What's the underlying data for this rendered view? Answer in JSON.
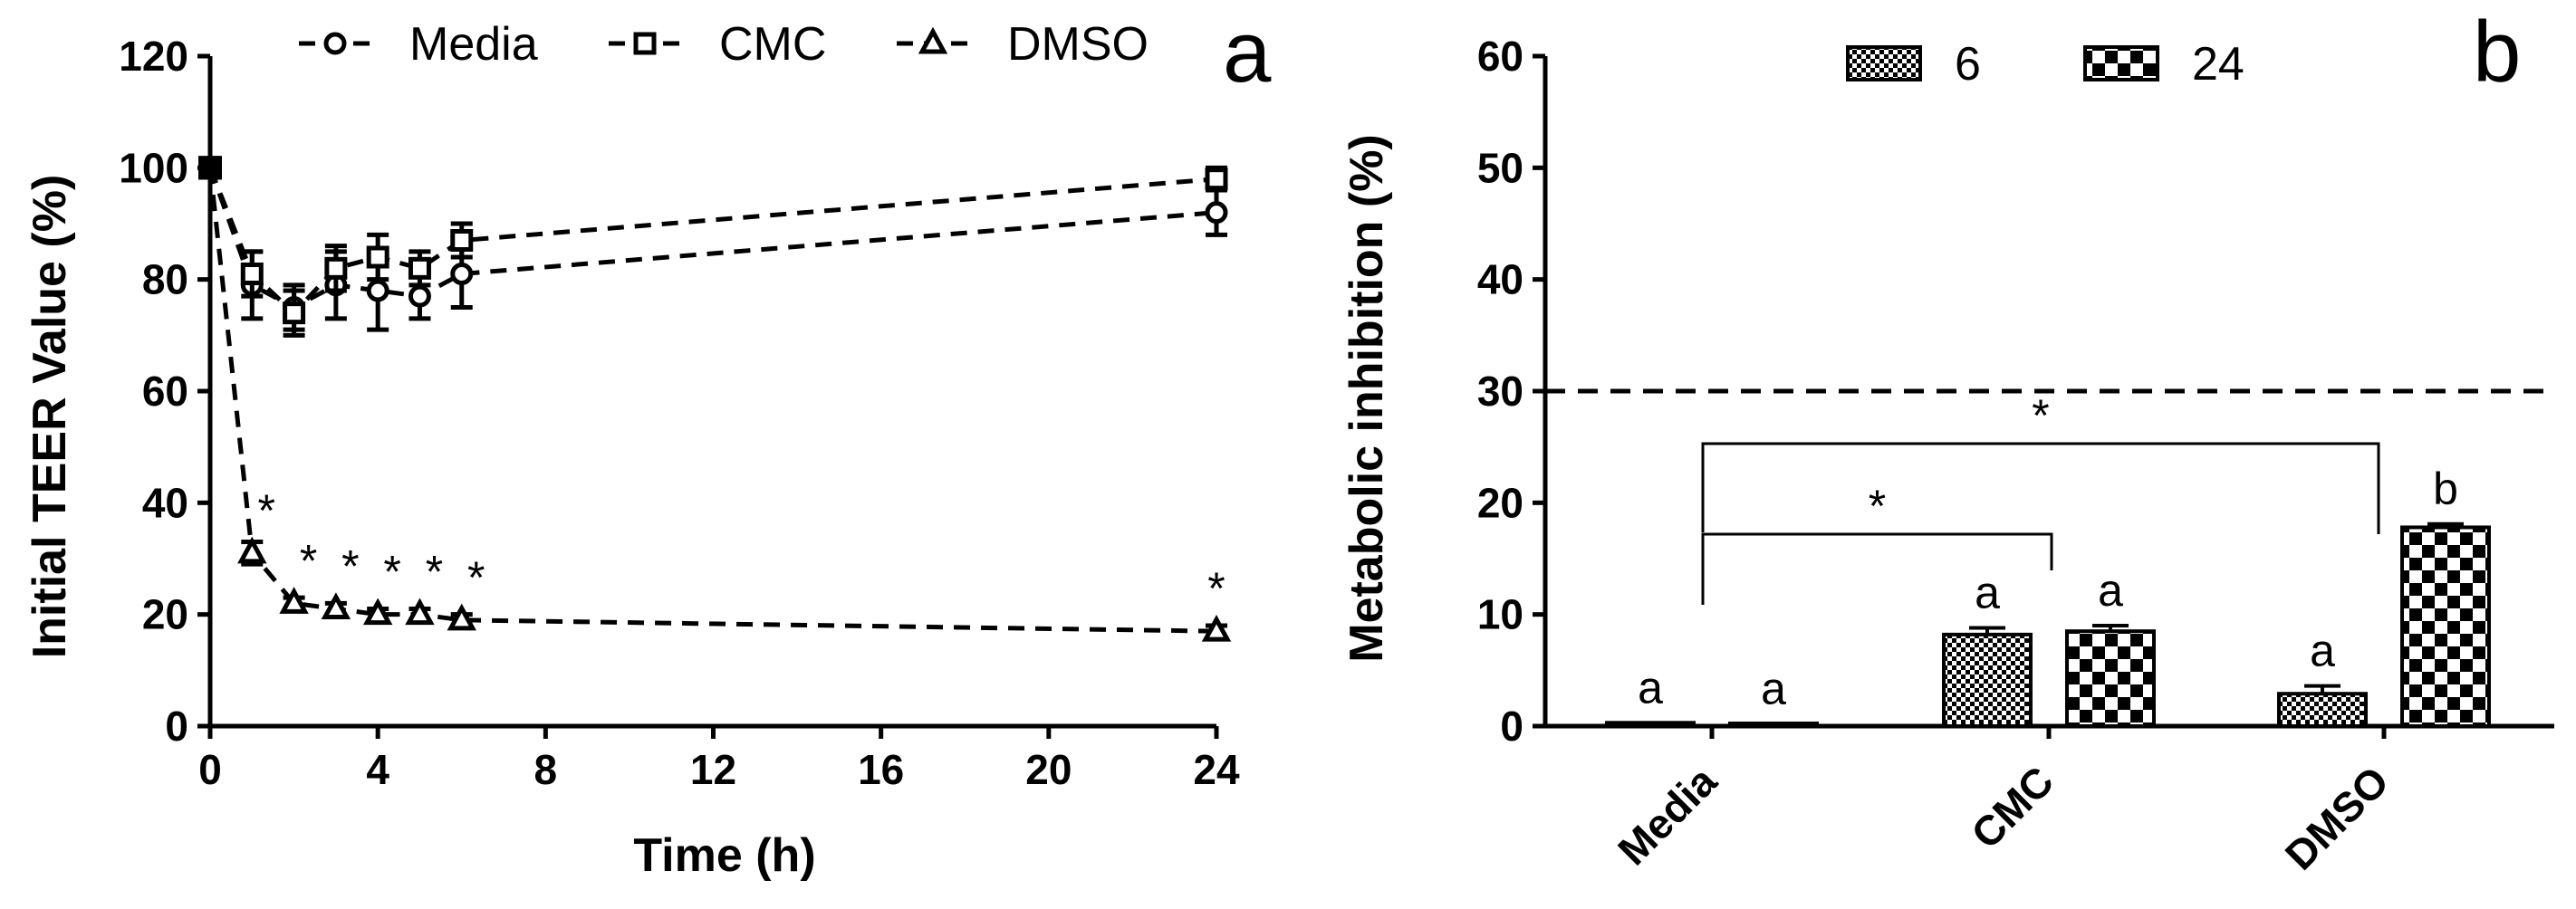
{
  "chart_data": [
    {
      "panel": "a",
      "type": "line",
      "xlabel": "Time (h)",
      "ylabel": "Initial TEER Value (%)",
      "xlim": [
        0,
        24
      ],
      "ylim": [
        0,
        120
      ],
      "xticks": [
        "0",
        "4",
        "8",
        "12",
        "16",
        "20",
        "24"
      ],
      "yticks": [
        "0",
        "20",
        "40",
        "60",
        "80",
        "100",
        "120"
      ],
      "x": [
        0,
        1,
        2,
        3,
        4,
        5,
        6,
        24
      ],
      "series": [
        {
          "name": "Media",
          "marker": "circle",
          "values": [
            100,
            79,
            75,
            79,
            78,
            77,
            81,
            92
          ],
          "errors": [
            0,
            6,
            4,
            6,
            7,
            4,
            6,
            4
          ]
        },
        {
          "name": "CMC",
          "marker": "square",
          "values": [
            100,
            81,
            74,
            82,
            84,
            82,
            87,
            98
          ],
          "errors": [
            0,
            4,
            4,
            4,
            4,
            3,
            3,
            2
          ]
        },
        {
          "name": "DMSO",
          "marker": "triangle",
          "values": [
            100,
            31,
            22,
            21,
            20,
            20,
            19,
            17
          ],
          "errors": [
            0,
            2,
            1,
            1,
            1,
            1,
            1,
            1
          ]
        }
      ],
      "significance": {
        "label": "*",
        "x": [
          1,
          2,
          3,
          4,
          5,
          6,
          24
        ]
      },
      "legend": "top"
    },
    {
      "panel": "b",
      "type": "bar",
      "xlabel": "",
      "ylabel": "Metabolic inhibition (%)",
      "ylim": [
        0,
        60
      ],
      "yticks": [
        "0",
        "10",
        "20",
        "30",
        "40",
        "50",
        "60"
      ],
      "categories": [
        "Media",
        "CMC",
        "DMSO"
      ],
      "series": [
        {
          "name": "6",
          "pattern": "checker-fine",
          "values": [
            0.3,
            8.2,
            2.9
          ],
          "errors": [
            0,
            0.6,
            0.7
          ],
          "letters": [
            "a",
            "a",
            "a"
          ]
        },
        {
          "name": "24",
          "pattern": "checker-coarse",
          "values": [
            0.2,
            8.5,
            17.8
          ],
          "errors": [
            0,
            0.5,
            0.3
          ],
          "letters": [
            "a",
            "a",
            "b"
          ]
        }
      ],
      "threshold": 30,
      "brackets": [
        {
          "from": "Media",
          "to": "CMC",
          "label": "*"
        },
        {
          "from": "Media",
          "to": "DMSO",
          "label": "*"
        }
      ],
      "legend": "top"
    }
  ]
}
